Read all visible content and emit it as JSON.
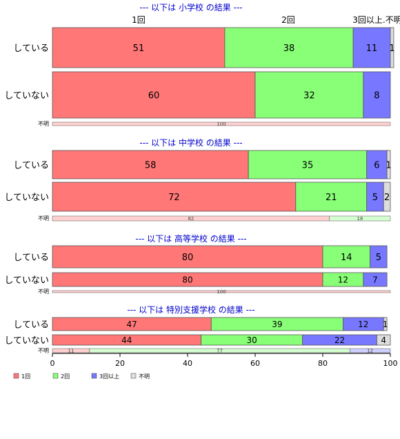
{
  "colors": {
    "once": "#ff7777",
    "twice": "#88ff77",
    "three_plus": "#7777ff",
    "unknown": "#dddddd",
    "title": "#0000cc",
    "border": "#555555"
  },
  "chart_data": {
    "type": "bar",
    "orientation": "horizontal",
    "stacked": "percent",
    "xlim": [
      0,
      100
    ],
    "x_ticks": [
      0,
      20,
      40,
      60,
      80,
      100
    ],
    "column_labels": [
      "1回",
      "2回",
      "3回以上",
      "不明"
    ],
    "legend": {
      "placement": "bottom-left",
      "items": [
        {
          "key": "once",
          "label": "1回"
        },
        {
          "key": "twice",
          "label": "2回"
        },
        {
          "key": "three_plus",
          "label": "3回以上"
        },
        {
          "key": "unknown",
          "label": "不明"
        }
      ]
    },
    "groups": [
      {
        "title": "--- 以下は 小学校 の結果 ---",
        "rows": [
          {
            "label": "している",
            "values": [
              51,
              38,
              11,
              1
            ]
          },
          {
            "label": "していない",
            "values": [
              60,
              32,
              8,
              0
            ]
          },
          {
            "label": "不明",
            "values": [
              100,
              0,
              0,
              0
            ],
            "thin": true
          }
        ]
      },
      {
        "title": "--- 以下は 中学校 の結果 ---",
        "rows": [
          {
            "label": "している",
            "values": [
              58,
              35,
              6,
              1
            ]
          },
          {
            "label": "していない",
            "values": [
              72,
              21,
              5,
              2
            ]
          },
          {
            "label": "不明",
            "values": [
              82,
              18,
              0,
              0
            ],
            "thin": true
          }
        ]
      },
      {
        "title": "--- 以下は 高等学校 の結果 ---",
        "rows": [
          {
            "label": "している",
            "values": [
              80,
              14,
              5,
              0
            ]
          },
          {
            "label": "していない",
            "values": [
              80,
              12,
              7,
              0
            ]
          },
          {
            "label": "不明",
            "values": [
              100,
              0,
              0,
              0
            ],
            "thin": true
          }
        ]
      },
      {
        "title": "--- 以下は 特別支援学校 の結果 ---",
        "rows": [
          {
            "label": "している",
            "values": [
              47,
              39,
              12,
              1
            ]
          },
          {
            "label": "していない",
            "values": [
              44,
              30,
              22,
              4
            ]
          },
          {
            "label": "不明",
            "values": [
              11,
              77,
              12,
              0
            ],
            "thin": true
          }
        ]
      }
    ]
  }
}
